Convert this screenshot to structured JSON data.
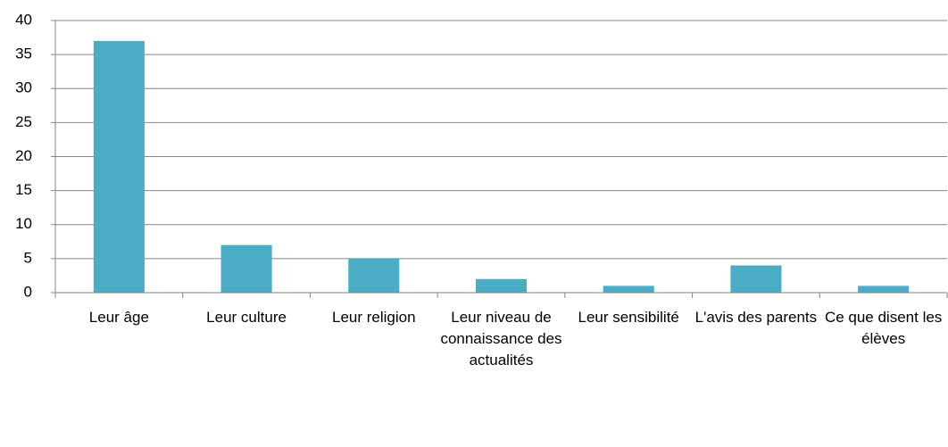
{
  "chart_data": {
    "type": "bar",
    "categories": [
      "Leur âge",
      "Leur culture",
      "Leur religion",
      "Leur niveau de connaissance des actualités",
      "Leur sensibilité",
      "L'avis des parents",
      "Ce que disent les élèves"
    ],
    "values": [
      37,
      7,
      5,
      2,
      1,
      4,
      1
    ],
    "color": "#4bacc6",
    "ylim": [
      0,
      40
    ],
    "yticks": [
      0,
      5,
      10,
      15,
      20,
      25,
      30,
      35,
      40
    ],
    "grid": true
  }
}
